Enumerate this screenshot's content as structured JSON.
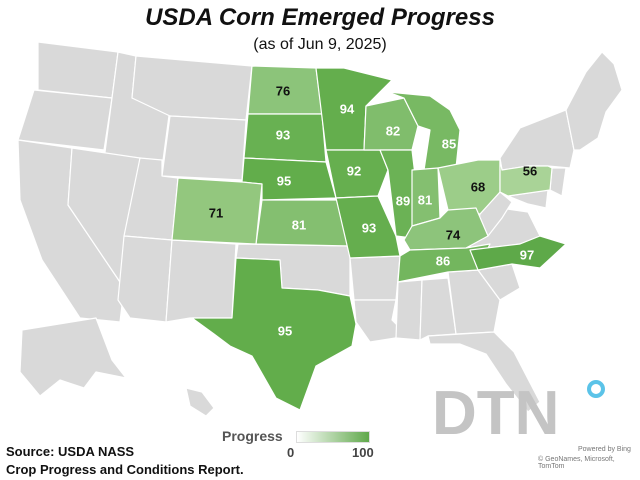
{
  "title": "USDA Corn Emerged Progress",
  "subtitle": "(as of Jun 9, 2025)",
  "legend": {
    "title": "Progress",
    "min": "0",
    "max": "100",
    "color_low": "#ffffff",
    "color_high": "#5fa84a"
  },
  "source": {
    "line1": "Source: USDA NASS",
    "line2": "Crop Progress and Conditions Report."
  },
  "credits": {
    "line1": "Powered by Bing",
    "line2": "© GeoNames, Microsoft, TomTom"
  },
  "logo": {
    "text": "DTN",
    "accent": "#5bc3e8"
  },
  "colors": {
    "no_data": "#d9d9d9",
    "border": "#ffffff"
  },
  "states": [
    {
      "id": "ND",
      "value": "76"
    },
    {
      "id": "SD",
      "value": "93"
    },
    {
      "id": "NE",
      "value": "95"
    },
    {
      "id": "KS",
      "value": "81"
    },
    {
      "id": "CO",
      "value": "71"
    },
    {
      "id": "TX",
      "value": "95"
    },
    {
      "id": "MN",
      "value": "94"
    },
    {
      "id": "IA",
      "value": "92"
    },
    {
      "id": "MO",
      "value": "93"
    },
    {
      "id": "WI",
      "value": "82"
    },
    {
      "id": "IL",
      "value": "89"
    },
    {
      "id": "MI",
      "value": "85"
    },
    {
      "id": "IN",
      "value": "81"
    },
    {
      "id": "OH",
      "value": "68"
    },
    {
      "id": "KY",
      "value": "74"
    },
    {
      "id": "TN",
      "value": "86"
    },
    {
      "id": "NC",
      "value": "97"
    },
    {
      "id": "PA",
      "value": "56"
    }
  ]
}
